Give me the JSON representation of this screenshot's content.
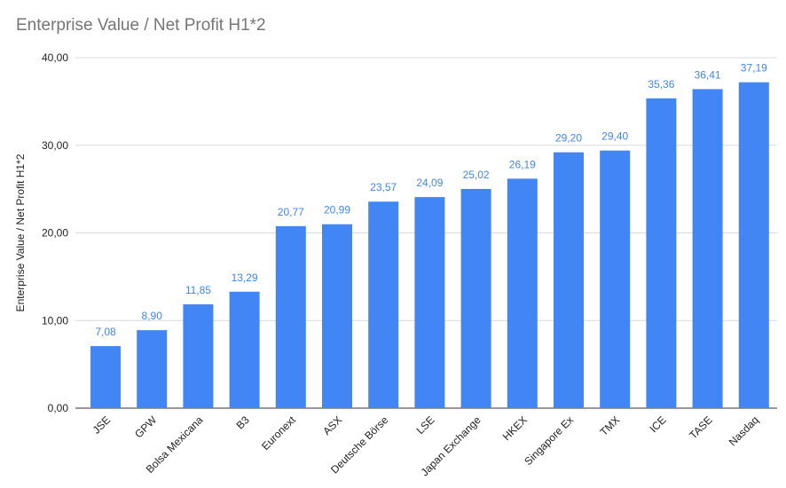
{
  "chart_data": {
    "type": "bar",
    "title": "Enterprise Value / Net Profit H1*2",
    "ylabel": "Enterprise Value / Net Profit H1*2",
    "xlabel": "",
    "ylim": [
      0,
      40
    ],
    "yticks": [
      "0,00",
      "10,00",
      "20,00",
      "30,00",
      "40,00"
    ],
    "ytick_values": [
      0,
      10,
      20,
      30,
      40
    ],
    "grid": true,
    "legend": "none",
    "categories": [
      "JSE",
      "GPW",
      "Bolsa Mexicana",
      "B3",
      "Euronext",
      "ASX",
      "Deutsche Börse",
      "LSE",
      "Japan Exchange",
      "HKEX",
      "Singapore Ex",
      "TMX",
      "ICE",
      "TASE",
      "Nasdaq"
    ],
    "values": [
      7.08,
      8.9,
      11.85,
      13.29,
      20.77,
      20.99,
      23.57,
      24.09,
      25.02,
      26.19,
      29.2,
      29.4,
      35.36,
      36.41,
      37.19
    ],
    "data_labels": [
      "7,08",
      "8,90",
      "11,85",
      "13,29",
      "20,77",
      "20,99",
      "23,57",
      "24,09",
      "25,02",
      "26,19",
      "29,20",
      "29,40",
      "35,36",
      "36,41",
      "37,19"
    ],
    "colors": {
      "bar": "#4285F4",
      "label": "#4285F4",
      "grid": "#D9D9D9",
      "axis": "#333333",
      "title": "#757575"
    }
  }
}
